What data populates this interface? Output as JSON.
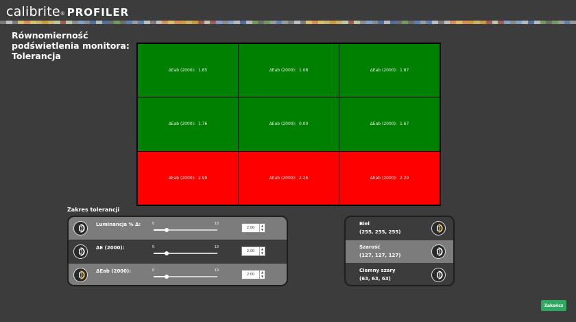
{
  "header": {
    "brand": "calibrite",
    "reg_mark": "®",
    "product": "PROFILER"
  },
  "page": {
    "title_line1": "Równomierność podświetlenia monitora:",
    "title_line2": "Tolerancja"
  },
  "grid": {
    "cells": [
      {
        "label": "ΔEab (2000):",
        "value": "1.85",
        "status": "pass"
      },
      {
        "label": "ΔEab (2000):",
        "value": "1.08",
        "status": "pass"
      },
      {
        "label": "ΔEab (2000):",
        "value": "1.87",
        "status": "pass"
      },
      {
        "label": "ΔEab (2000):",
        "value": "1.76",
        "status": "pass"
      },
      {
        "label": "ΔEab (2000):",
        "value": "0.00",
        "status": "pass"
      },
      {
        "label": "ΔEab (2000):",
        "value": "1.67",
        "status": "pass"
      },
      {
        "label": "ΔEab (2000):",
        "value": "2.99",
        "status": "fail"
      },
      {
        "label": "ΔEab (2000):",
        "value": "2.26",
        "status": "fail"
      },
      {
        "label": "ΔEab (2000):",
        "value": "2.29",
        "status": "fail"
      }
    ]
  },
  "tolerance": {
    "title": "Zakres tolerancji",
    "rows": [
      {
        "label": "Luminancja % Δ:",
        "min": "0",
        "max": "10",
        "value": "2.00",
        "level": 0.2,
        "selected": false
      },
      {
        "label": "ΔE (2000):",
        "min": "0",
        "max": "10",
        "value": "2.00",
        "level": 0.2,
        "selected": false
      },
      {
        "label": "ΔEab (2000):",
        "min": "0",
        "max": "10",
        "value": "2.00",
        "level": 0.2,
        "selected": true
      }
    ],
    "stepper_up": "▲",
    "stepper_down": "▼"
  },
  "patches": [
    {
      "name": "Biel",
      "rgb": "(255, 255, 255)",
      "selected": true
    },
    {
      "name": "Szarość",
      "rgb": "(127, 127, 127)",
      "selected": false
    },
    {
      "name": "Ciemny szary",
      "rgb": "(63, 63, 63)",
      "selected": false
    }
  ],
  "footer": {
    "finish_label": "Zakończ"
  },
  "colors": {
    "pass": "#008000",
    "fail": "#ff0000",
    "accent_green": "#2fa862",
    "icon_yellow": "#f2c94c"
  }
}
